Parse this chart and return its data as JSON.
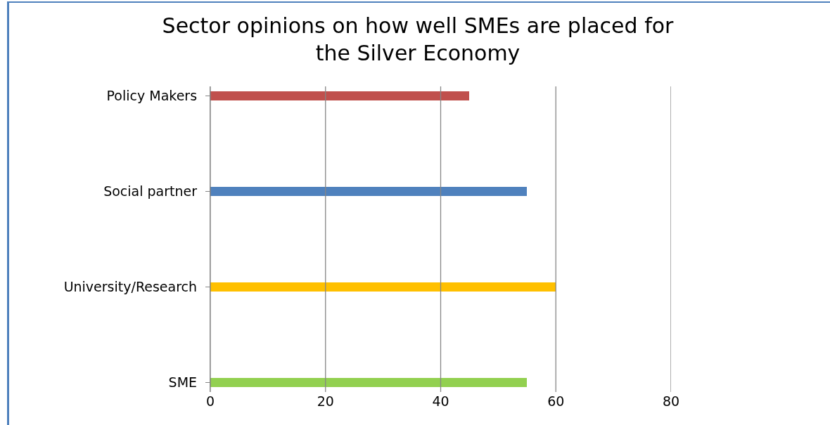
{
  "chart_data": {
    "type": "bar",
    "orientation": "horizontal",
    "title": "Sector opinions on how well SMEs are placed for the Silver Economy",
    "categories": [
      "Policy Makers",
      "Social partner",
      "University/Research",
      "SME"
    ],
    "values": [
      45,
      55,
      60,
      55
    ],
    "colors": [
      "#c0504d",
      "#4f81bd",
      "#ffc000",
      "#92d050"
    ],
    "xlim": [
      0,
      80
    ],
    "xticks": [
      0,
      20,
      40,
      60,
      80
    ],
    "grid": "x"
  }
}
